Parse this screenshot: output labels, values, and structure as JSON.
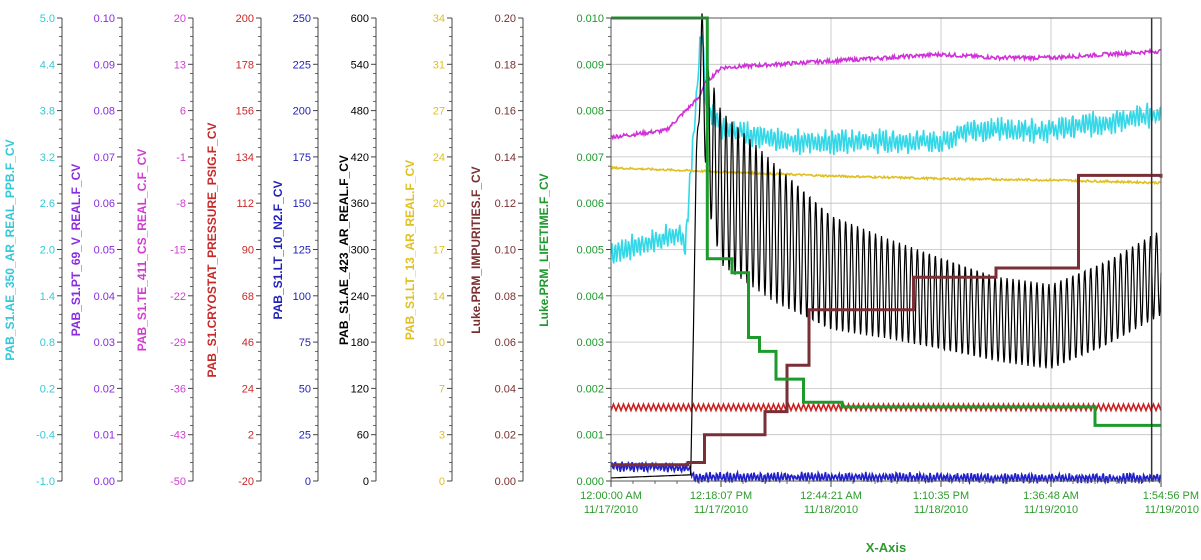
{
  "chart_data": {
    "type": "line",
    "grid": true,
    "plot_background": "#ffffff",
    "grid_color": "#c0c0c0",
    "x_axis": {
      "title": "X-Axis",
      "color": "#2e9b2e",
      "ticks": [
        {
          "time": "12:00:00 AM",
          "date": "11/17/2010"
        },
        {
          "time": "12:18:07 PM",
          "date": "11/17/2010"
        },
        {
          "time": "12:44:21 AM",
          "date": "11/18/2010"
        },
        {
          "time": "1:10:35 PM",
          "date": "11/18/2010"
        },
        {
          "time": "1:36:48 AM",
          "date": "11/19/2010"
        },
        {
          "time": "1:54:56 PM",
          "date": "11/19/2010"
        }
      ]
    },
    "y_axes": [
      {
        "name": "PAB_S1.AE_350_AR_REAL_PPB.F_CV",
        "color": "#33c8d8",
        "ticks": [
          "5.0",
          "4.4",
          "3.8",
          "3.2",
          "2.6",
          "2.0",
          "1.4",
          "0.8",
          "0.2",
          "-0.4",
          "-1.0"
        ],
        "range": [
          -1.0,
          5.0
        ]
      },
      {
        "name": "PAB_S1.PT_69_V_REAL.F_CV",
        "color": "#8a2be2",
        "ticks": [
          "0.10",
          "0.09",
          "0.08",
          "0.07",
          "0.06",
          "0.05",
          "0.04",
          "0.03",
          "0.02",
          "0.01",
          "0.00"
        ],
        "range": [
          0.0,
          0.1
        ]
      },
      {
        "name": "PAB_S1.TE_411_CS_REAL_C.F_CV",
        "color": "#d23cd2",
        "ticks": [
          "20",
          "13",
          "6",
          "-1",
          "-8",
          "-15",
          "-22",
          "-29",
          "-36",
          "-43",
          "-50"
        ],
        "range": [
          -50,
          20
        ]
      },
      {
        "name": "PAB_S1.CRYOSTAT_PRESSURE_PSIG.F_CV",
        "color": "#c82828",
        "ticks": [
          "200",
          "178",
          "156",
          "134",
          "112",
          "90",
          "68",
          "46",
          "24",
          "2",
          "-20"
        ],
        "range": [
          -20,
          200
        ]
      },
      {
        "name": "PAB_S1.LT_10_N2.F_CV",
        "color": "#2222bb",
        "ticks": [
          "250",
          "225",
          "200",
          "175",
          "150",
          "125",
          "100",
          "75",
          "50",
          "25",
          "0"
        ],
        "range": [
          0,
          250
        ]
      },
      {
        "name": "PAB_S1.AE_423_AR_REAL.F_CV",
        "color": "#000000",
        "ticks": [
          "600",
          "540",
          "480",
          "420",
          "360",
          "300",
          "240",
          "180",
          "120",
          "60",
          "0"
        ],
        "range": [
          0,
          600
        ]
      },
      {
        "name": "PAB_S1.LT_13_AR_REAL.F_CV",
        "color": "#e0c020",
        "ticks": [
          "34",
          "31",
          "27",
          "24",
          "20",
          "17",
          "14",
          "10",
          "7",
          "3",
          "0"
        ],
        "range": [
          0,
          34
        ]
      },
      {
        "name": "Luke.PRM_IMPURITIES.F_CV",
        "color": "#7a3030",
        "ticks": [
          "0.20",
          "0.18",
          "0.16",
          "0.14",
          "0.12",
          "0.10",
          "0.08",
          "0.06",
          "0.04",
          "0.02",
          "0.00"
        ],
        "range": [
          0.0,
          0.2
        ]
      },
      {
        "name": "Luke.PRM_LIFETIME.F_CV",
        "color": "#1c9a2c",
        "ticks": [
          "0.010",
          "0.009",
          "0.008",
          "0.007",
          "0.006",
          "0.005",
          "0.004",
          "0.003",
          "0.002",
          "0.001",
          "0.000"
        ],
        "range": [
          0.0,
          0.01
        ]
      }
    ],
    "series": [
      {
        "name": "PAB_S1.AE_350_AR_REAL_PPB.F_CV",
        "color": "#33d8e8",
        "axis": 0,
        "style": "noisy",
        "noise": 0.12,
        "x": [
          0,
          0.12,
          0.135,
          0.165,
          0.175,
          0.185,
          0.2,
          0.3,
          0.45,
          0.6,
          0.65,
          0.8,
          1.0
        ],
        "y": [
          1.95,
          2.2,
          2.05,
          4.9,
          3.6,
          3.8,
          3.6,
          3.4,
          3.4,
          3.4,
          3.55,
          3.55,
          3.75
        ]
      },
      {
        "name": "PAB_S1.TE_411_CS_REAL_C.F_CV",
        "color": "#d030d8",
        "axis": 2,
        "style": "smooth",
        "noise": 0.6,
        "x": [
          0,
          0.1,
          0.16,
          0.17,
          0.2,
          0.3,
          0.4,
          0.5,
          0.6,
          0.7,
          0.8,
          1.0
        ],
        "y": [
          2.0,
          3.0,
          8.0,
          10.0,
          12.5,
          13.0,
          13.5,
          14.0,
          14.5,
          14.0,
          14.0,
          15.0
        ]
      },
      {
        "name": "PAB_S1.LT_13_AR_REAL.F_CV",
        "color": "#e0c020",
        "axis": 6,
        "style": "smooth",
        "noise": 0.15,
        "x": [
          0,
          0.2,
          0.4,
          0.6,
          0.8,
          1.0
        ],
        "y": [
          23.0,
          22.7,
          22.4,
          22.2,
          22.1,
          21.9
        ]
      },
      {
        "name": "PAB_S1.CRYOSTAT_PRESSURE_PSIG.F_CV",
        "color": "#cc2020",
        "axis": 3,
        "style": "saw",
        "amp": 3,
        "x": [
          0,
          1.0
        ],
        "y": [
          15.0,
          15.0
        ]
      },
      {
        "name": "PAB_S1.LT_10_N2.F_CV",
        "color": "#2020cc",
        "axis": 4,
        "style": "noisy",
        "noise": 2.0,
        "x": [
          0,
          0.14,
          0.15,
          0.2,
          0.5,
          0.7,
          0.71,
          1.0
        ],
        "y": [
          8.0,
          7.0,
          2.0,
          2.0,
          2.0,
          1.5,
          1.5,
          1.5
        ]
      },
      {
        "name": "PAB_S1.AE_423_AR_REAL.F_CV",
        "color": "#000000",
        "axis": 5,
        "style": "osc",
        "x": [
          0,
          0.145,
          0.15,
          0.155,
          0.165,
          0.175,
          0.2,
          0.3,
          0.4,
          0.5,
          0.6,
          0.7,
          0.8,
          0.9,
          1.0
        ],
        "y": [
          4.0,
          8.0,
          200.0,
          420.0,
          560.0,
          450.0,
          380.0,
          320.0,
          270.0,
          250.0,
          230.0,
          210.0,
          200.0,
          230.0,
          270.0
        ],
        "amp": [
          0,
          0,
          0,
          0,
          50,
          90,
          100,
          90,
          75,
          65,
          60,
          55,
          55,
          55,
          55
        ]
      },
      {
        "name": "Luke.PRM_IMPURITIES.F_CV",
        "color": "#7a2e36",
        "axis": 7,
        "style": "step",
        "x": [
          0,
          0.14,
          0.17,
          0.28,
          0.32,
          0.36,
          0.44,
          0.55,
          0.7,
          0.8,
          0.85,
          0.93,
          1.0
        ],
        "y": [
          0.007,
          0.008,
          0.02,
          0.03,
          0.05,
          0.074,
          0.074,
          0.088,
          0.092,
          0.092,
          0.132,
          0.132,
          0.131
        ]
      },
      {
        "name": "Luke.PRM_LIFETIME.F_CV",
        "color": "#1c9a2c",
        "axis": 8,
        "style": "step",
        "x": [
          0,
          0.15,
          0.175,
          0.22,
          0.25,
          0.27,
          0.3,
          0.35,
          0.42,
          0.5,
          0.6,
          0.88,
          1.0
        ],
        "y": [
          0.01,
          0.01,
          0.0048,
          0.0045,
          0.0031,
          0.0028,
          0.0022,
          0.0017,
          0.0016,
          0.0016,
          0.0016,
          0.0012,
          0.0012
        ]
      }
    ],
    "cursor_position": 0.983
  }
}
